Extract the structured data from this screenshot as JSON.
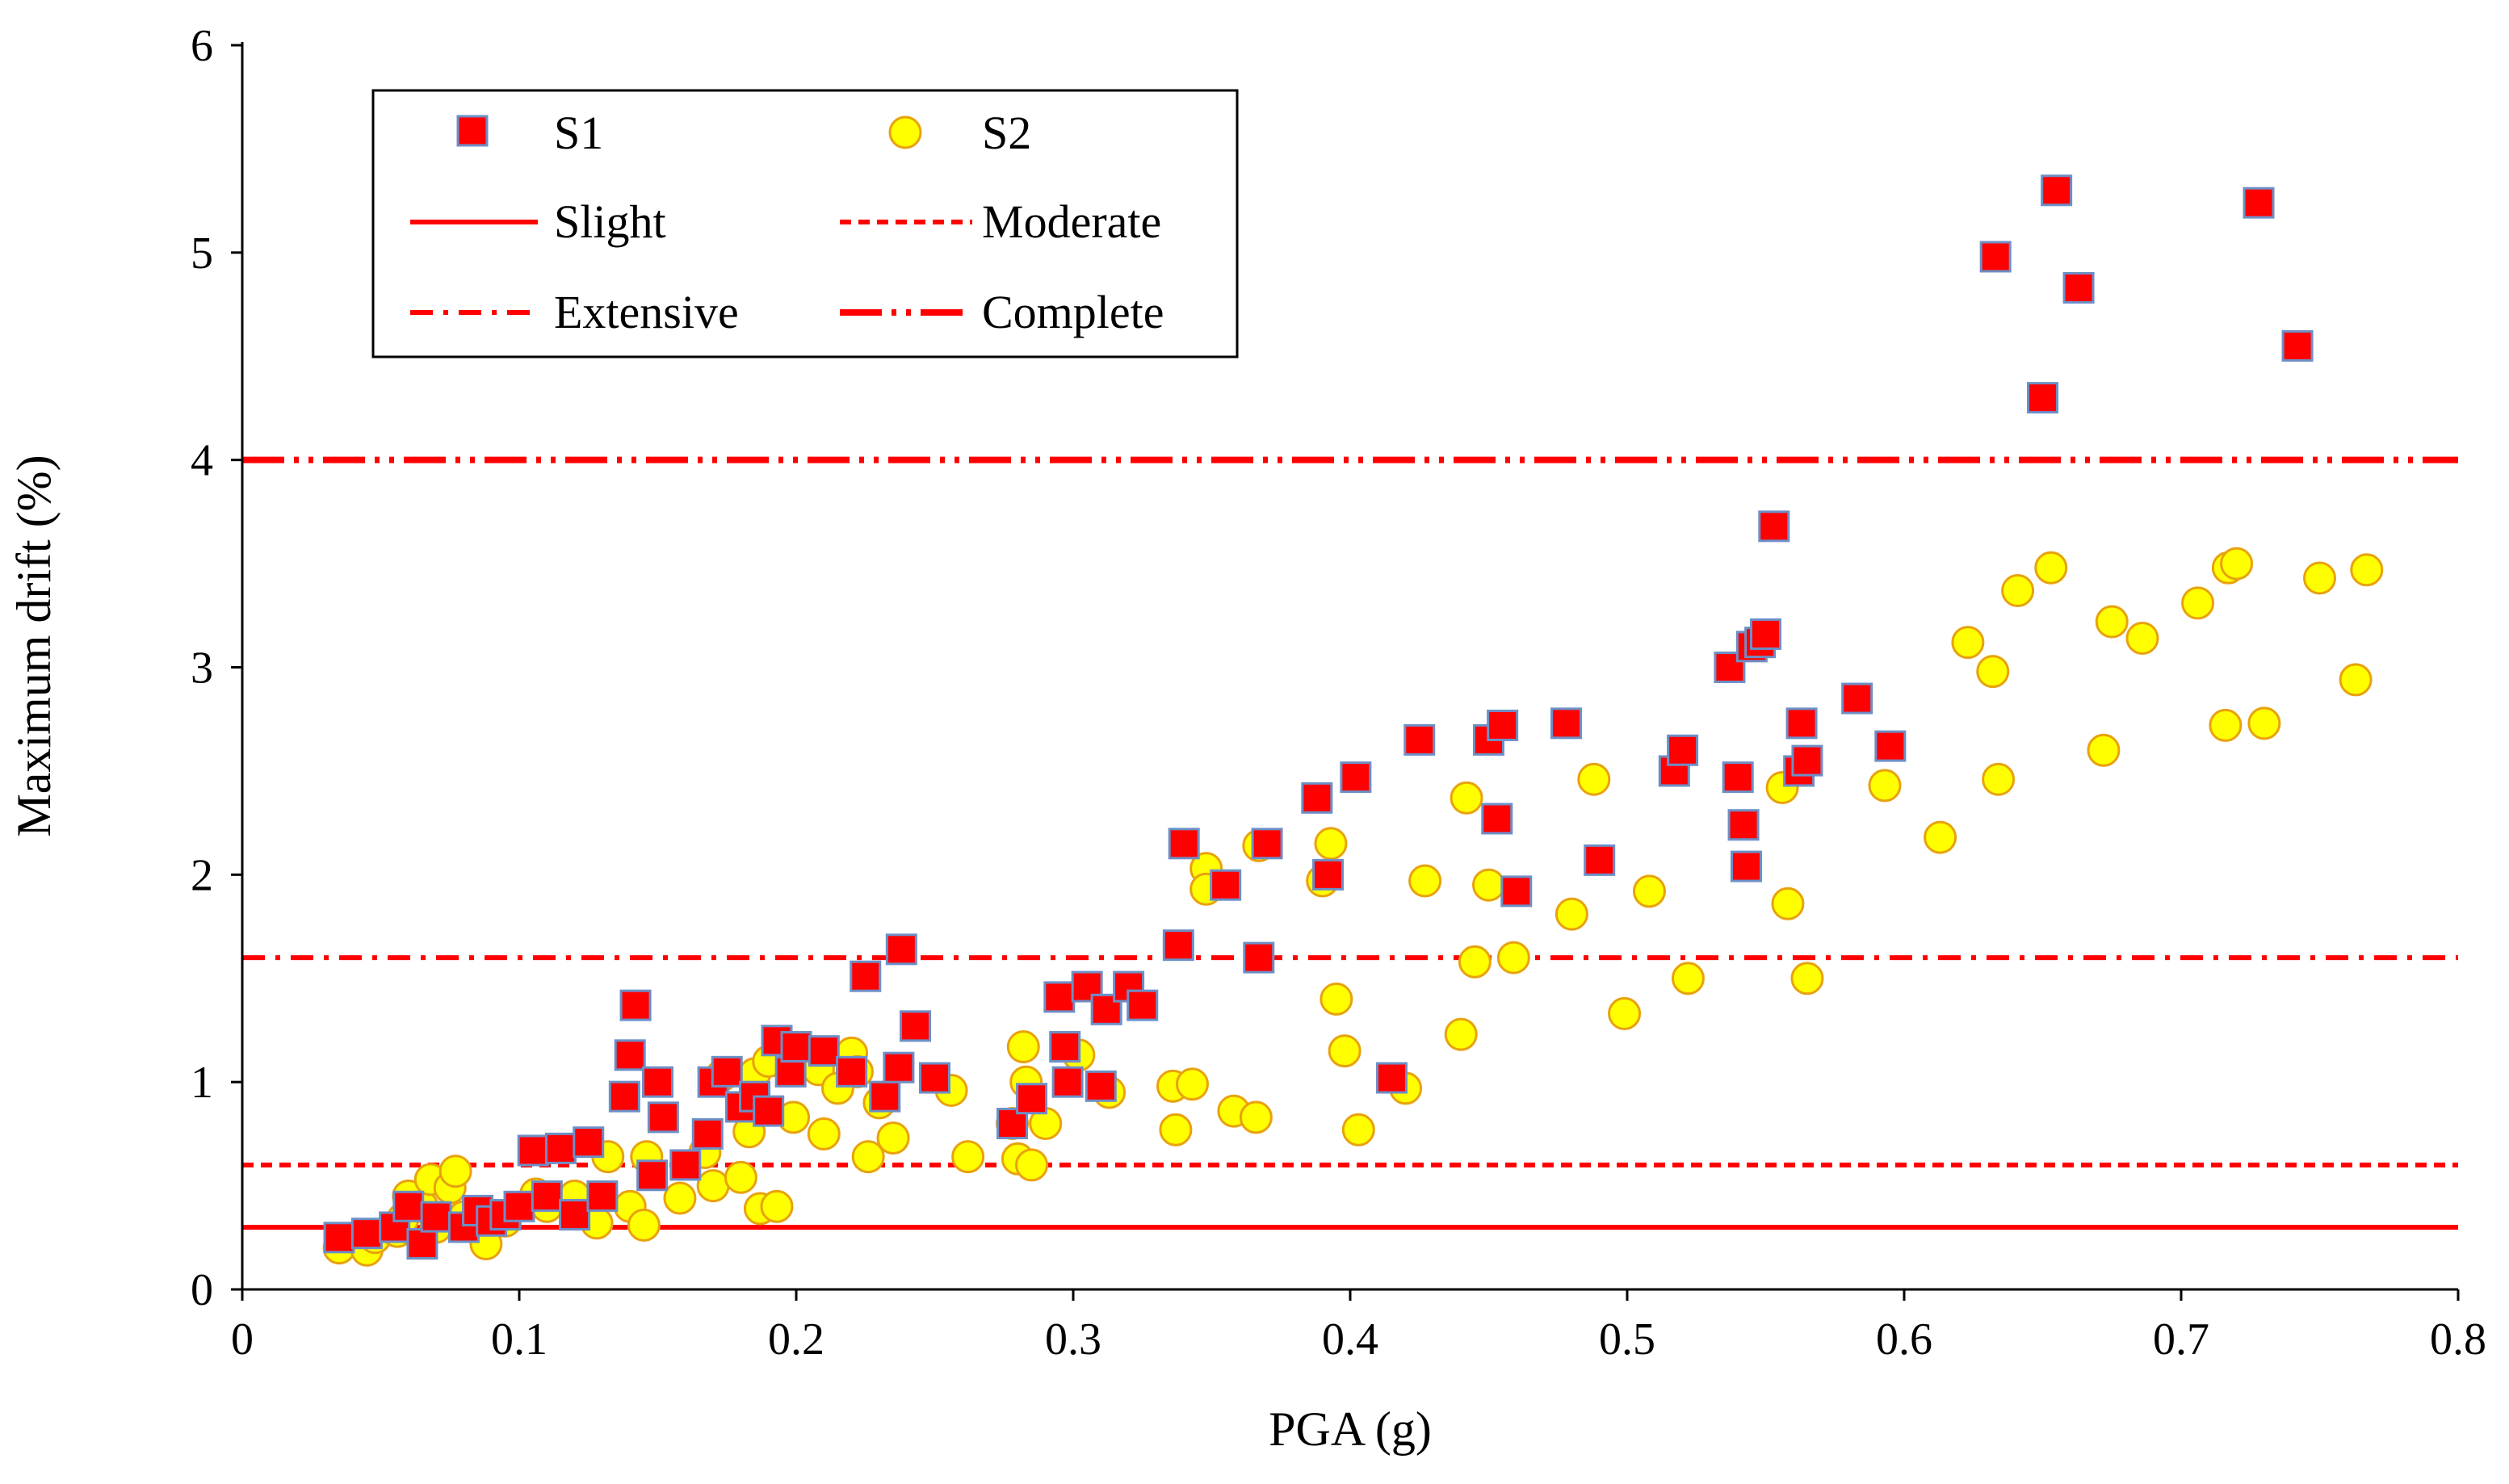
{
  "chart_data": {
    "type": "scatter",
    "title": "",
    "xlabel": "PGA (g)",
    "ylabel": "Maximum drift (%)",
    "xlim": [
      0,
      0.8
    ],
    "ylim": [
      0,
      6
    ],
    "xticks": [
      "0",
      "0.1",
      "0.2",
      "0.3",
      "0.4",
      "0.5",
      "0.6",
      "0.7",
      "0.8"
    ],
    "yticks": [
      "0",
      "1",
      "2",
      "3",
      "4",
      "5",
      "6"
    ],
    "grid": false,
    "legend_position": "top-left",
    "series": [
      {
        "name": "S1",
        "marker": "square",
        "fill": "#ff0000",
        "stroke": "#6d8fc7",
        "points": [
          [
            0.035,
            0.25
          ],
          [
            0.045,
            0.27
          ],
          [
            0.055,
            0.3
          ],
          [
            0.06,
            0.4
          ],
          [
            0.065,
            0.22
          ],
          [
            0.07,
            0.35
          ],
          [
            0.08,
            0.3
          ],
          [
            0.085,
            0.38
          ],
          [
            0.09,
            0.33
          ],
          [
            0.095,
            0.36
          ],
          [
            0.1,
            0.4
          ],
          [
            0.105,
            0.67
          ],
          [
            0.11,
            0.45
          ],
          [
            0.115,
            0.68
          ],
          [
            0.12,
            0.36
          ],
          [
            0.125,
            0.71
          ],
          [
            0.13,
            0.45
          ],
          [
            0.138,
            0.93
          ],
          [
            0.14,
            1.13
          ],
          [
            0.142,
            1.37
          ],
          [
            0.148,
            0.55
          ],
          [
            0.15,
            1.0
          ],
          [
            0.152,
            0.83
          ],
          [
            0.16,
            0.6
          ],
          [
            0.168,
            0.75
          ],
          [
            0.17,
            1.0
          ],
          [
            0.175,
            1.05
          ],
          [
            0.18,
            0.88
          ],
          [
            0.185,
            0.93
          ],
          [
            0.19,
            0.86
          ],
          [
            0.193,
            1.2
          ],
          [
            0.198,
            1.05
          ],
          [
            0.2,
            1.17
          ],
          [
            0.21,
            1.15
          ],
          [
            0.22,
            1.05
          ],
          [
            0.225,
            1.51
          ],
          [
            0.232,
            0.93
          ],
          [
            0.237,
            1.07
          ],
          [
            0.238,
            1.64
          ],
          [
            0.243,
            1.27
          ],
          [
            0.25,
            1.02
          ],
          [
            0.278,
            0.8
          ],
          [
            0.285,
            0.92
          ],
          [
            0.295,
            1.41
          ],
          [
            0.297,
            1.17
          ],
          [
            0.298,
            1.0
          ],
          [
            0.305,
            1.46
          ],
          [
            0.31,
            0.98
          ],
          [
            0.312,
            1.35
          ],
          [
            0.32,
            1.46
          ],
          [
            0.325,
            1.37
          ],
          [
            0.338,
            1.66
          ],
          [
            0.34,
            2.15
          ],
          [
            0.355,
            1.95
          ],
          [
            0.367,
            1.6
          ],
          [
            0.37,
            2.15
          ],
          [
            0.388,
            2.37
          ],
          [
            0.392,
            2.0
          ],
          [
            0.402,
            2.47
          ],
          [
            0.415,
            1.02
          ],
          [
            0.425,
            2.65
          ],
          [
            0.45,
            2.65
          ],
          [
            0.453,
            2.27
          ],
          [
            0.455,
            2.72
          ],
          [
            0.46,
            1.92
          ],
          [
            0.478,
            2.73
          ],
          [
            0.49,
            2.07
          ],
          [
            0.517,
            2.5
          ],
          [
            0.52,
            2.6
          ],
          [
            0.537,
            3.0
          ],
          [
            0.54,
            2.47
          ],
          [
            0.542,
            2.24
          ],
          [
            0.543,
            2.04
          ],
          [
            0.545,
            3.1
          ],
          [
            0.548,
            3.12
          ],
          [
            0.55,
            3.16
          ],
          [
            0.553,
            3.68
          ],
          [
            0.562,
            2.5
          ],
          [
            0.563,
            2.73
          ],
          [
            0.565,
            2.55
          ],
          [
            0.583,
            2.85
          ],
          [
            0.595,
            2.62
          ],
          [
            0.633,
            4.98
          ],
          [
            0.65,
            4.3
          ],
          [
            0.655,
            5.3
          ],
          [
            0.663,
            4.83
          ],
          [
            0.728,
            5.24
          ],
          [
            0.742,
            4.55
          ]
        ]
      },
      {
        "name": "S2",
        "marker": "circle",
        "fill": "#ffff00",
        "stroke": "#e8a20c",
        "points": [
          [
            0.035,
            0.2
          ],
          [
            0.045,
            0.19
          ],
          [
            0.048,
            0.25
          ],
          [
            0.056,
            0.28
          ],
          [
            0.058,
            0.34
          ],
          [
            0.06,
            0.45
          ],
          [
            0.065,
            0.4
          ],
          [
            0.068,
            0.53
          ],
          [
            0.07,
            0.3
          ],
          [
            0.075,
            0.49
          ],
          [
            0.077,
            0.57
          ],
          [
            0.08,
            0.35
          ],
          [
            0.087,
            0.33
          ],
          [
            0.088,
            0.22
          ],
          [
            0.095,
            0.33
          ],
          [
            0.106,
            0.46
          ],
          [
            0.11,
            0.4
          ],
          [
            0.12,
            0.45
          ],
          [
            0.128,
            0.32
          ],
          [
            0.132,
            0.64
          ],
          [
            0.14,
            0.4
          ],
          [
            0.145,
            0.31
          ],
          [
            0.146,
            0.64
          ],
          [
            0.158,
            0.44
          ],
          [
            0.167,
            0.66
          ],
          [
            0.17,
            0.5
          ],
          [
            0.173,
            1.03
          ],
          [
            0.18,
            0.54
          ],
          [
            0.183,
            0.76
          ],
          [
            0.185,
            1.04
          ],
          [
            0.187,
            0.39
          ],
          [
            0.19,
            1.1
          ],
          [
            0.193,
            0.4
          ],
          [
            0.199,
            0.83
          ],
          [
            0.208,
            1.06
          ],
          [
            0.21,
            0.75
          ],
          [
            0.215,
            0.97
          ],
          [
            0.22,
            1.14
          ],
          [
            0.222,
            1.05
          ],
          [
            0.226,
            0.64
          ],
          [
            0.23,
            0.9
          ],
          [
            0.235,
            0.73
          ],
          [
            0.256,
            0.96
          ],
          [
            0.262,
            0.64
          ],
          [
            0.278,
            0.8
          ],
          [
            0.28,
            0.63
          ],
          [
            0.282,
            1.17
          ],
          [
            0.283,
            1.0
          ],
          [
            0.285,
            0.6
          ],
          [
            0.29,
            0.8
          ],
          [
            0.302,
            1.13
          ],
          [
            0.313,
            0.95
          ],
          [
            0.336,
            0.98
          ],
          [
            0.337,
            0.77
          ],
          [
            0.343,
            0.99
          ],
          [
            0.348,
            2.03
          ],
          [
            0.348,
            1.93
          ],
          [
            0.358,
            0.86
          ],
          [
            0.366,
            0.83
          ],
          [
            0.367,
            2.14
          ],
          [
            0.39,
            1.97
          ],
          [
            0.393,
            2.15
          ],
          [
            0.395,
            1.4
          ],
          [
            0.398,
            1.15
          ],
          [
            0.403,
            0.77
          ],
          [
            0.42,
            0.97
          ],
          [
            0.427,
            1.97
          ],
          [
            0.44,
            1.23
          ],
          [
            0.442,
            2.37
          ],
          [
            0.445,
            1.58
          ],
          [
            0.45,
            1.95
          ],
          [
            0.459,
            1.6
          ],
          [
            0.48,
            1.81
          ],
          [
            0.488,
            2.46
          ],
          [
            0.499,
            1.33
          ],
          [
            0.508,
            1.92
          ],
          [
            0.522,
            1.5
          ],
          [
            0.556,
            2.42
          ],
          [
            0.558,
            1.86
          ],
          [
            0.565,
            1.5
          ],
          [
            0.593,
            2.43
          ],
          [
            0.613,
            2.18
          ],
          [
            0.623,
            3.12
          ],
          [
            0.632,
            2.98
          ],
          [
            0.634,
            2.46
          ],
          [
            0.641,
            3.37
          ],
          [
            0.653,
            3.48
          ],
          [
            0.672,
            2.6
          ],
          [
            0.675,
            3.22
          ],
          [
            0.686,
            3.14
          ],
          [
            0.706,
            3.31
          ],
          [
            0.716,
            2.72
          ],
          [
            0.717,
            3.48
          ],
          [
            0.72,
            3.5
          ],
          [
            0.73,
            2.73
          ],
          [
            0.75,
            3.43
          ],
          [
            0.763,
            2.94
          ],
          [
            0.767,
            3.47
          ]
        ]
      }
    ],
    "reference_lines": [
      {
        "name": "Slight",
        "y": 0.3,
        "style": "solid",
        "color": "#ff0000"
      },
      {
        "name": "Moderate",
        "y": 0.6,
        "style": "dashed",
        "color": "#ff0000"
      },
      {
        "name": "Extensive",
        "y": 1.6,
        "style": "dash-dot",
        "color": "#ff0000"
      },
      {
        "name": "Complete",
        "y": 4.0,
        "style": "long-dash-dot-dot",
        "color": "#ff0000"
      }
    ]
  }
}
